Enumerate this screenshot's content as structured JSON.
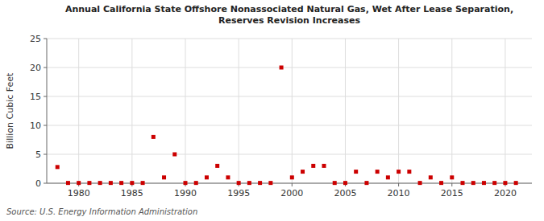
{
  "chart_data": {
    "type": "scatter",
    "title": "Annual California State Offshore Nonassociated Natural Gas, Wet After Lease Separation,\nReserves Revision Increases",
    "ylabel": "Billion Cubic Feet",
    "source": "Source: U.S. Energy Information Administration",
    "color": "#cc0000",
    "marker": "square",
    "grid": true,
    "xlim": [
      1977,
      2022.5
    ],
    "ylim": [
      0,
      25
    ],
    "yticks": [
      0,
      5,
      10,
      15,
      20,
      25
    ],
    "xticks": [
      1980,
      1985,
      1990,
      1995,
      2000,
      2005,
      2010,
      2015,
      2020
    ],
    "x": [
      1978,
      1979,
      1980,
      1981,
      1982,
      1983,
      1984,
      1985,
      1986,
      1987,
      1988,
      1989,
      1990,
      1991,
      1992,
      1993,
      1994,
      1995,
      1996,
      1997,
      1998,
      1999,
      2000,
      2001,
      2002,
      2003,
      2004,
      2005,
      2006,
      2007,
      2008,
      2009,
      2010,
      2011,
      2012,
      2013,
      2014,
      2015,
      2016,
      2017,
      2018,
      2019,
      2020,
      2021
    ],
    "values": [
      2.8,
      0.05,
      0.05,
      0.05,
      0.05,
      0.05,
      0.05,
      0.05,
      0.05,
      8.0,
      1.0,
      5.0,
      0.05,
      0.05,
      1.0,
      3.0,
      1.0,
      0.05,
      0.05,
      0.05,
      0.05,
      20.0,
      1.0,
      2.0,
      3.0,
      3.0,
      0.05,
      0.05,
      2.0,
      0.05,
      2.0,
      1.0,
      2.0,
      2.0,
      0.05,
      1.0,
      0.05,
      1.0,
      0.05,
      0.05,
      0.05,
      0.05,
      0.05,
      0.05
    ]
  }
}
